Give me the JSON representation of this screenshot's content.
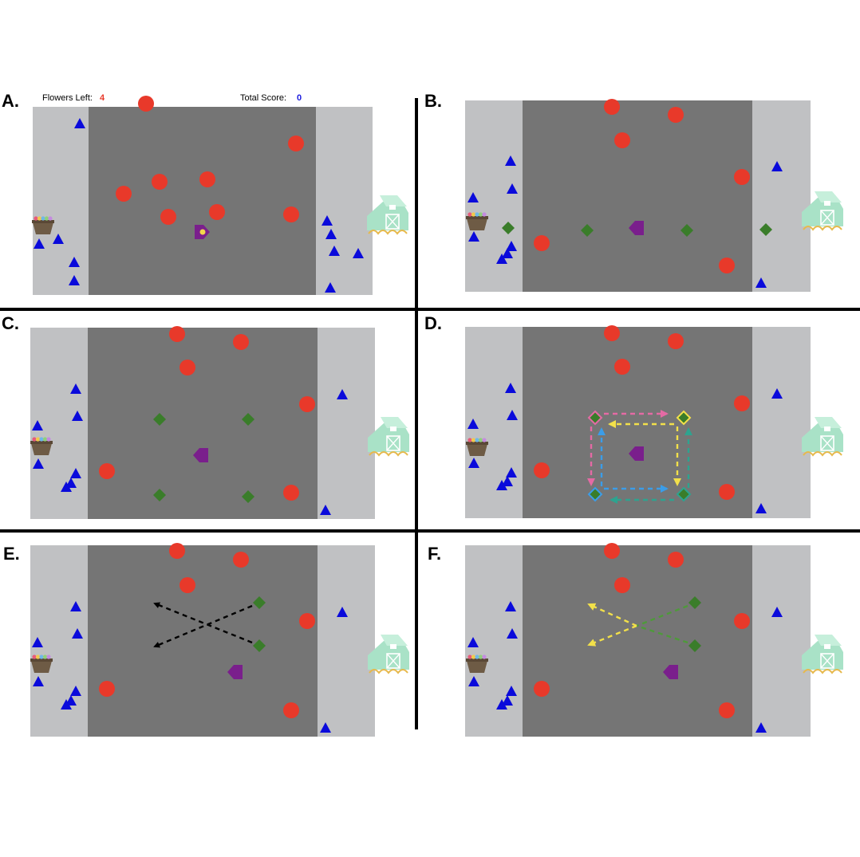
{
  "hud": {
    "flowers_left_label": "Flowers Left:",
    "flowers_left_value": "4",
    "total_score_label": "Total Score:",
    "total_score_value": "0"
  },
  "colors": {
    "light_zone": "#c0c1c3",
    "dark_field": "#757575",
    "flower": "#e8392a",
    "bee": "#0a0adb",
    "player": "#7a1f8c",
    "diamond": "#3a7d2a",
    "basket": "#6e5b45",
    "barn": "#a9e2c7",
    "divider": "#000000",
    "arrow_black": "#000000",
    "arrow_pink": "#e46aa4",
    "arrow_yellow": "#f2e04a",
    "arrow_blue": "#3b9de8",
    "arrow_teal": "#2ea38f",
    "arrow_green": "#4e9a3a"
  },
  "icons": {
    "flower": "red-circle-flower-icon",
    "bee": "blue-triangle-bee-icon",
    "player": "purple-pentagon-player-icon",
    "target": "green-diamond-target-icon",
    "basket": "flower-basket-icon",
    "barn": "barn-icon"
  },
  "panels": [
    {
      "id": "A",
      "label": "A."
    },
    {
      "id": "B",
      "label": "B."
    },
    {
      "id": "C",
      "label": "C."
    },
    {
      "id": "D",
      "label": "D."
    },
    {
      "id": "E",
      "label": "E."
    },
    {
      "id": "F",
      "label": "F."
    }
  ]
}
